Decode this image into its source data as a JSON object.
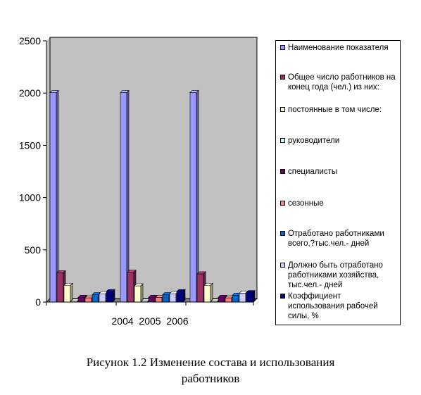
{
  "chart_data": {
    "type": "bar",
    "style": "3d-clustered",
    "categories": [
      "2004",
      "2005",
      "2006"
    ],
    "category_label": "2004  2005  2006",
    "ylim": [
      0,
      2500
    ],
    "yticks": [
      "0",
      "500",
      "1000",
      "1500",
      "2000",
      "2500"
    ],
    "grid": false,
    "plot_background": "#c0c0c0",
    "legend_position": "right",
    "series": [
      {
        "name": "Наименование показателя",
        "color": "#9999ff",
        "values": [
          2004,
          2005,
          2006
        ]
      },
      {
        "name": "Общее число работников на конец года (чел.) из них:",
        "color": "#993366",
        "values": [
          280,
          285,
          270
        ]
      },
      {
        "name": "постоянные  в том числе:",
        "color": "#ffffcc",
        "values": [
          160,
          155,
          160
        ]
      },
      {
        "name": "руководители",
        "color": "#ccffff",
        "values": [
          10,
          10,
          10
        ]
      },
      {
        "name": "специалисты",
        "color": "#660066",
        "values": [
          45,
          45,
          45
        ]
      },
      {
        "name": "сезонные",
        "color": "#ff8080",
        "values": [
          40,
          45,
          40
        ]
      },
      {
        "name": "Отработано работниками всего,?тыс.чел.- дней",
        "color": "#0066cc",
        "values": [
          70,
          70,
          65
        ]
      },
      {
        "name": "Должно быть отработано работниками хозяйства, тыс.чел.- дней",
        "color": "#ccccff",
        "values": [
          80,
          80,
          85
        ]
      },
      {
        "name": "Коэффициент использования рабочей силы, %",
        "color": "#000080",
        "values": [
          100,
          100,
          90
        ]
      }
    ]
  },
  "caption": {
    "line1": "Рисунок 1.2 Изменение состава и использования",
    "line2": "работников"
  }
}
